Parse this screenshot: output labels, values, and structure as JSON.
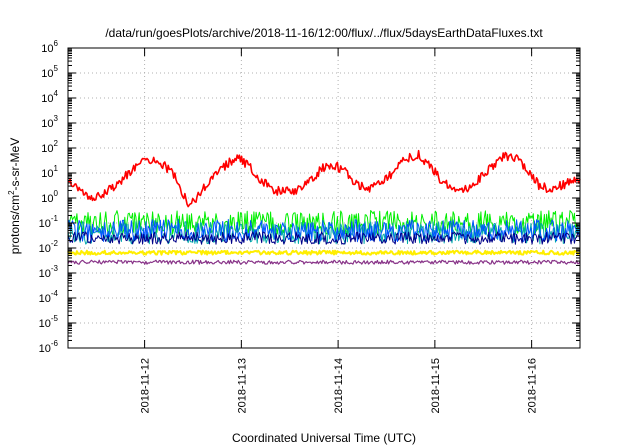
{
  "chart_data": {
    "type": "line",
    "title": "/data/run/goesPlots/archive/2018-11-16/12:00/flux/../flux/5daysEarthDataFluxes.txt",
    "xlabel": "Coordinated Universal Time (UTC)",
    "ylabel": {
      "pre": "protons/cm",
      "sup": "2",
      "post": "-s-sr-MeV"
    },
    "yscale": "log",
    "ylim": [
      1e-06,
      1000000.0
    ],
    "xlim": [
      "2018-11-11T05:00",
      "2018-11-16T12:00"
    ],
    "grid": true,
    "x_ticks": [
      "2018-11-12",
      "2018-11-13",
      "2018-11-14",
      "2018-11-15",
      "2018-11-16"
    ],
    "y_ticks": [
      {
        "base": "10",
        "exp": "-6"
      },
      {
        "base": "10",
        "exp": "-5"
      },
      {
        "base": "10",
        "exp": "-4"
      },
      {
        "base": "10",
        "exp": "-3"
      },
      {
        "base": "10",
        "exp": "-2"
      },
      {
        "base": "10",
        "exp": "-1"
      },
      {
        "base": "10",
        "exp": "0"
      },
      {
        "base": "10",
        "exp": "1"
      },
      {
        "base": "10",
        "exp": "2"
      },
      {
        "base": "10",
        "exp": "3"
      },
      {
        "base": "10",
        "exp": "4"
      },
      {
        "base": "10",
        "exp": "5"
      },
      {
        "base": "10",
        "exp": "6"
      }
    ],
    "series": [
      {
        "color": "#ff0000",
        "width": 1.6,
        "x": [
          "2018-11-11T05:00",
          "2018-11-11T08:00",
          "2018-11-11T11:00",
          "2018-11-11T14:00",
          "2018-11-11T17:00",
          "2018-11-11T20:00",
          "2018-11-11T23:00",
          "2018-11-12T02:00",
          "2018-11-12T05:00",
          "2018-11-12T08:00",
          "2018-11-12T11:00",
          "2018-11-12T14:00",
          "2018-11-12T17:00",
          "2018-11-12T20:00",
          "2018-11-12T23:00",
          "2018-11-13T02:00",
          "2018-11-13T05:00",
          "2018-11-13T08:00",
          "2018-11-13T11:00",
          "2018-11-13T14:00",
          "2018-11-13T17:00",
          "2018-11-13T20:00",
          "2018-11-13T23:00",
          "2018-11-14T02:00",
          "2018-11-14T05:00",
          "2018-11-14T08:00",
          "2018-11-14T11:00",
          "2018-11-14T14:00",
          "2018-11-14T17:00",
          "2018-11-14T20:00",
          "2018-11-14T23:00",
          "2018-11-15T02:00",
          "2018-11-15T05:00",
          "2018-11-15T08:00",
          "2018-11-15T11:00",
          "2018-11-15T14:00",
          "2018-11-15T17:00",
          "2018-11-15T20:00",
          "2018-11-15T23:00",
          "2018-11-16T02:00",
          "2018-11-16T05:00",
          "2018-11-16T08:00",
          "2018-11-16T11:00",
          "2018-11-16T12:00"
        ],
        "y": [
          5,
          2,
          1.1,
          1.6,
          3,
          10,
          30,
          38,
          20,
          6,
          0.4,
          2,
          6,
          20,
          42,
          18,
          5,
          2,
          1.8,
          2.2,
          5,
          15,
          22,
          10,
          3,
          2.4,
          4,
          12,
          40,
          55,
          18,
          4,
          2.3,
          2.6,
          6,
          18,
          45,
          40,
          12,
          3,
          2.2,
          3.5,
          5,
          6
        ],
        "noise": 0.18
      },
      {
        "color": "#00ee00",
        "width": 1,
        "x": [
          "2018-11-11T05:00",
          "2018-11-16T12:00"
        ],
        "y": [
          0.1,
          0.1
        ],
        "noise": 0.5
      },
      {
        "color": "#00aaaa",
        "width": 1,
        "x": [
          "2018-11-11T05:00",
          "2018-11-16T12:00"
        ],
        "y": [
          0.04,
          0.04
        ],
        "noise": 0.45
      },
      {
        "color": "#0055ff",
        "width": 1,
        "x": [
          "2018-11-11T05:00",
          "2018-11-16T12:00"
        ],
        "y": [
          0.05,
          0.05
        ],
        "noise": 0.45
      },
      {
        "color": "#000088",
        "width": 1,
        "x": [
          "2018-11-11T05:00",
          "2018-11-16T12:00"
        ],
        "y": [
          0.025,
          0.025
        ],
        "noise": 0.25
      },
      {
        "color": "#ffee00",
        "width": 2,
        "x": [
          "2018-11-11T05:00",
          "2018-11-16T12:00"
        ],
        "y": [
          0.0065,
          0.0065
        ],
        "noise": 0.08
      },
      {
        "color": "#883388",
        "width": 1.2,
        "x": [
          "2018-11-11T05:00",
          "2018-11-16T12:00"
        ],
        "y": [
          0.0027,
          0.0027
        ],
        "noise": 0.08
      }
    ]
  }
}
